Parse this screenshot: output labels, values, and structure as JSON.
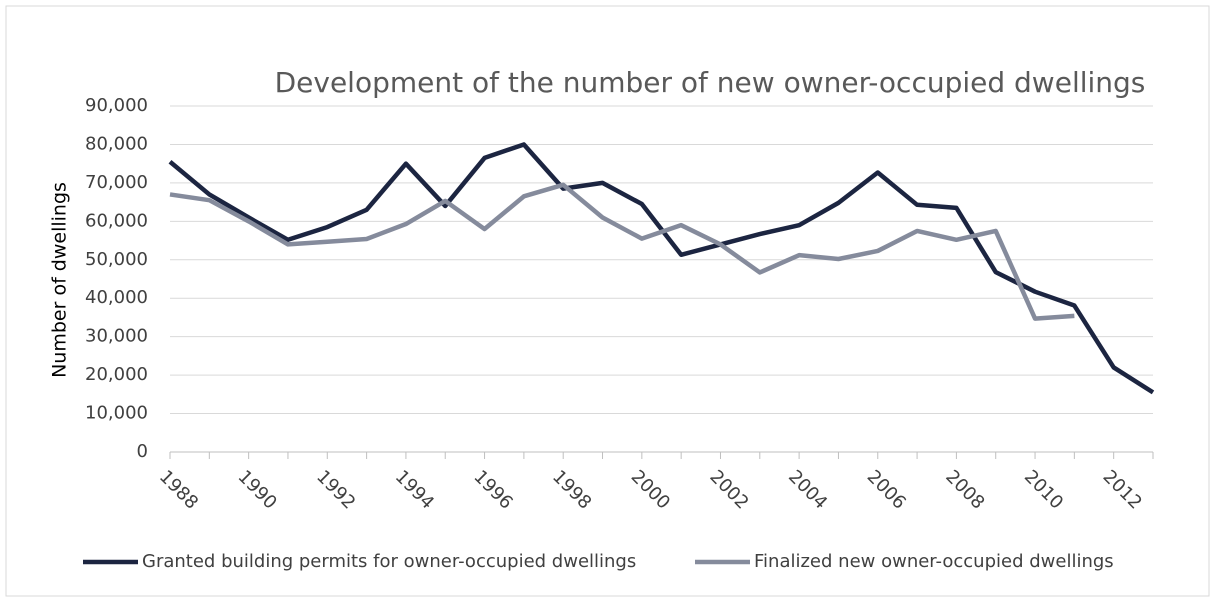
{
  "chart_data": {
    "type": "line",
    "title": "Development of the number of new owner-occupied dwellings",
    "ylabel": "Number of dwellings",
    "x": [
      1988,
      1989,
      1990,
      1991,
      1992,
      1993,
      1994,
      1995,
      1996,
      1997,
      1998,
      1999,
      2000,
      2001,
      2002,
      2003,
      2004,
      2005,
      2006,
      2007,
      2008,
      2009,
      2010,
      2011,
      2012,
      2013
    ],
    "series": [
      {
        "name": "Granted building permits for owner-occupied dwellings",
        "color": "#1c2541",
        "values": [
          75500,
          67000,
          61000,
          55200,
          58500,
          63000,
          75000,
          64000,
          76500,
          80000,
          68500,
          70000,
          64500,
          51300,
          54000,
          56700,
          59000,
          64800,
          72700,
          64300,
          63500,
          46800,
          41700,
          38100,
          22000,
          15500
        ]
      },
      {
        "name": "Finalized new owner-occupied dwellings",
        "color": "#858b9c",
        "values": [
          67000,
          65500,
          60000,
          54000,
          54700,
          55400,
          59300,
          65300,
          58000,
          66500,
          69500,
          61000,
          55500,
          59000,
          54000,
          46700,
          51200,
          50200,
          52300,
          57500,
          55200,
          57500,
          34700,
          35400,
          null,
          null
        ]
      }
    ],
    "xlim": [
      1988,
      2013
    ],
    "xticks": [
      1988,
      1990,
      1992,
      1994,
      1996,
      1998,
      2000,
      2002,
      2004,
      2006,
      2008,
      2010,
      2012
    ],
    "ylim": [
      0,
      90000
    ],
    "yticks": [
      {
        "value": 0,
        "label": "0"
      },
      {
        "value": 10000,
        "label": "10,000"
      },
      {
        "value": 20000,
        "label": "20,000"
      },
      {
        "value": 30000,
        "label": "30,000"
      },
      {
        "value": 40000,
        "label": "40,000"
      },
      {
        "value": 50000,
        "label": "50,000"
      },
      {
        "value": 60000,
        "label": "60,000"
      },
      {
        "value": 70000,
        "label": "70,000"
      },
      {
        "value": 80000,
        "label": "80,000"
      },
      {
        "value": 90000,
        "label": "90,000"
      }
    ],
    "grid": true,
    "legend": "bottom"
  }
}
